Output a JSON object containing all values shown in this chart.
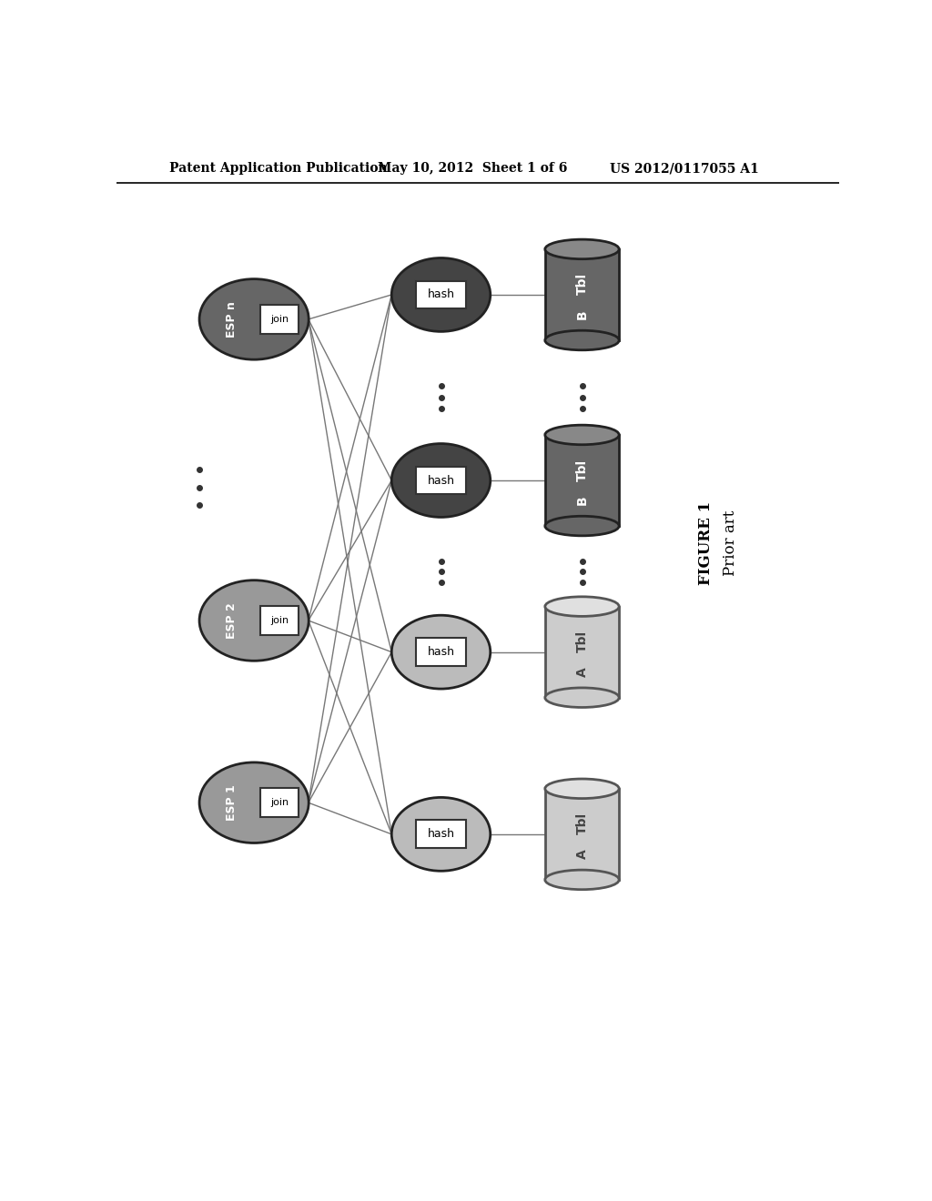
{
  "title_left": "Patent Application Publication",
  "title_mid": "May 10, 2012  Sheet 1 of 6",
  "title_right": "US 2012/0117055 A1",
  "figure_label": "FIGURE 1",
  "figure_sublabel": "Prior art",
  "bg_color": "#ffffff",
  "esp_dark_color": "#666666",
  "esp_medium_color": "#999999",
  "hash_dark_color": "#444444",
  "hash_light_color": "#bbbbbb",
  "tbl_dark_body": "#666666",
  "tbl_dark_cap": "#888888",
  "tbl_light_body": "#cccccc",
  "tbl_light_cap": "#e0e0e0"
}
